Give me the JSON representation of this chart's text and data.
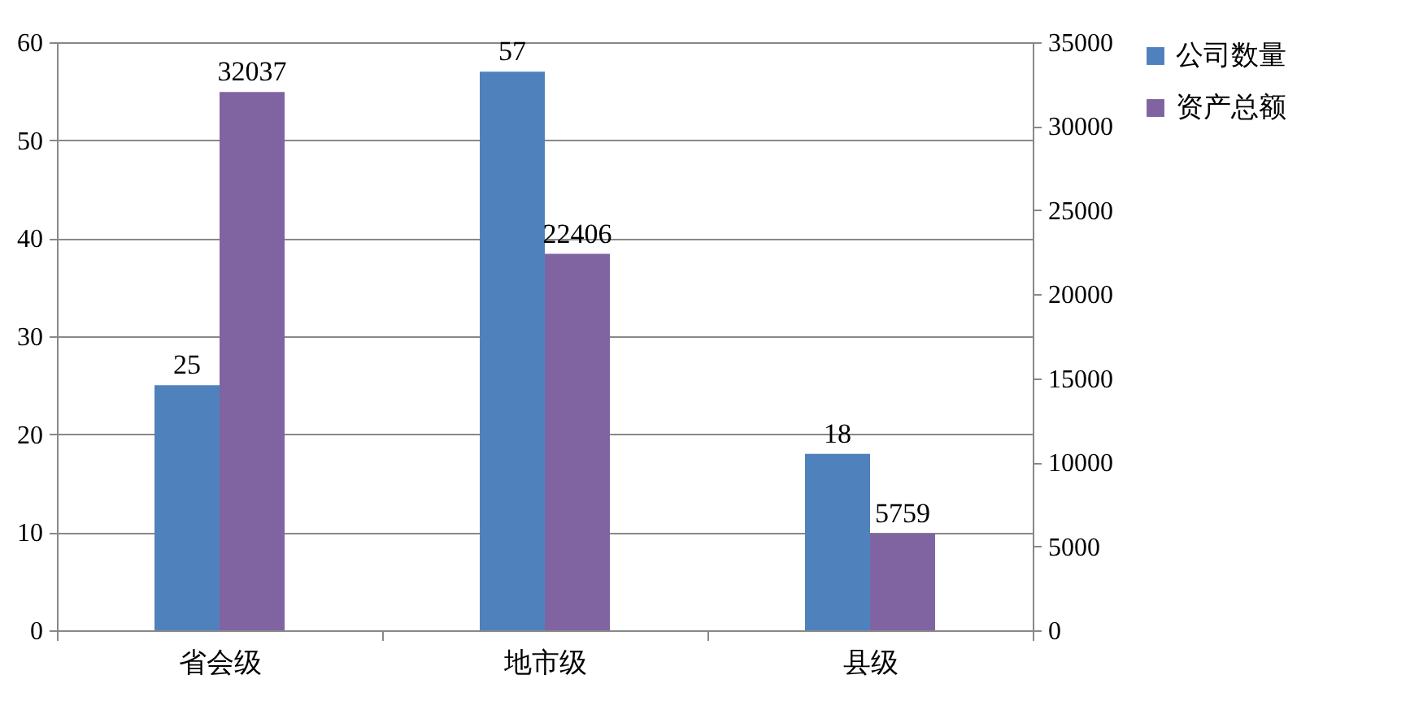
{
  "chart_data": {
    "type": "bar",
    "categories": [
      "省会级",
      "地市级",
      "县级"
    ],
    "series": [
      {
        "name": "公司数量",
        "color": "#4f81bd",
        "values": [
          25,
          57,
          18
        ]
      },
      {
        "name": "资产总额",
        "color": "#8064a2",
        "values": [
          32037,
          22406,
          5759
        ],
        "axis": "y2"
      }
    ],
    "ylim": [
      0,
      60
    ],
    "yticks": [
      0,
      10,
      20,
      30,
      40,
      50,
      60
    ],
    "y2lim": [
      0,
      35000
    ],
    "y2ticks": [
      0,
      5000,
      10000,
      15000,
      20000,
      25000,
      30000,
      35000
    ],
    "grid": "y",
    "legend": "right",
    "data_labels": true
  }
}
